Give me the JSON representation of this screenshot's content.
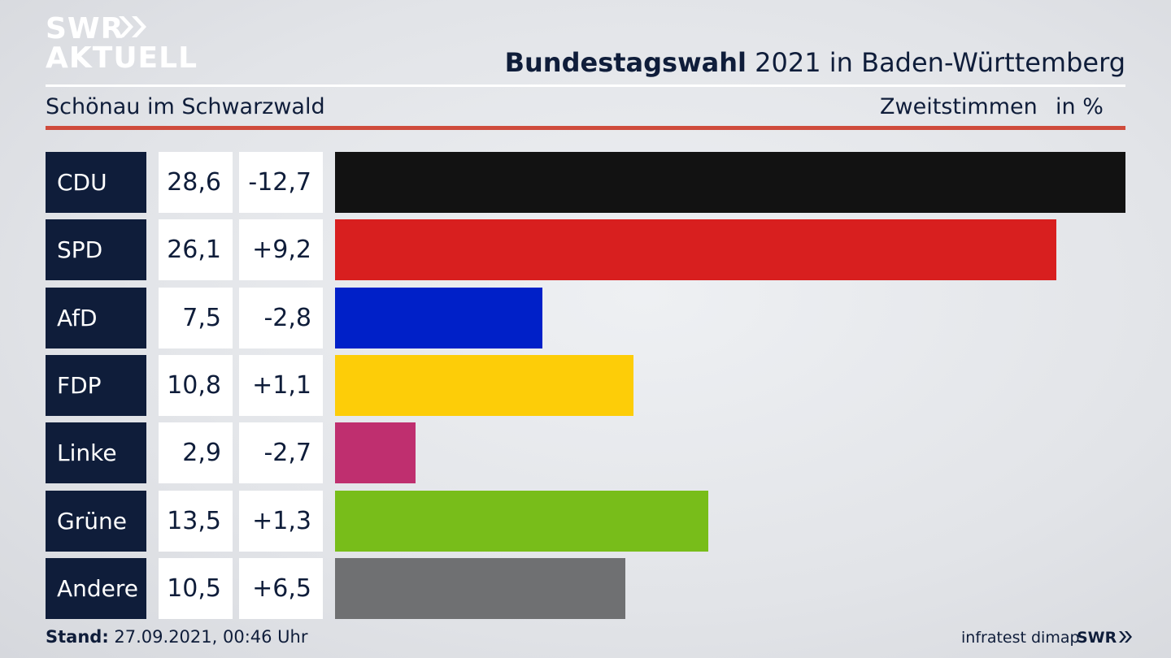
{
  "brand": {
    "line1": "SWR",
    "line2": "AKTUELL",
    "footer_logo": "SWR"
  },
  "header": {
    "title_bold": "Bundestagswahl",
    "title_rest": " 2021 in Baden-Württemberg",
    "subtitle": "Schönau im Schwarzwald",
    "metric": "Zweitstimmen",
    "unit": "in %"
  },
  "footer": {
    "stand_label": "Stand:",
    "stand_value": " 27.09.2021, 00:46 Uhr",
    "source": "infratest dimap"
  },
  "chart_data": {
    "type": "bar",
    "categories": [
      "CDU",
      "SPD",
      "AfD",
      "FDP",
      "Linke",
      "Grüne",
      "Andere"
    ],
    "values": [
      28.6,
      26.1,
      7.5,
      10.8,
      2.9,
      13.5,
      10.5
    ],
    "values_label": [
      "28,6",
      "26,1",
      "7,5",
      "10,8",
      "2,9",
      "13,5",
      "10,5"
    ],
    "changes": [
      "-12,7",
      "+9,2",
      "-2,8",
      "+1,1",
      "-2,7",
      "+1,3",
      "+6,5"
    ],
    "colors": [
      "#121212",
      "#d81f1f",
      "#0020c8",
      "#fdcd08",
      "#bf2f6f",
      "#78bd1a",
      "#6f7072"
    ],
    "title": "Bundestagswahl 2021 in Baden-Württemberg",
    "subtitle": "Schönau im Schwarzwald",
    "ylabel": "Zweitstimmen in %",
    "xlim": [
      0,
      28.6
    ],
    "grid": false
  }
}
